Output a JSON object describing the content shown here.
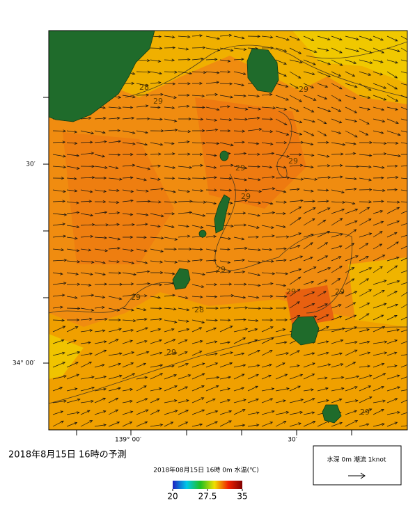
{
  "title": "2018年8月15日  16時の予測",
  "map": {
    "lat_labels": [
      "30′",
      "34° 00′"
    ],
    "lon_labels": [
      "139° 00′",
      "30′"
    ],
    "contour_labels": [
      "28",
      "29",
      "29",
      "29",
      "29",
      "29",
      "29",
      "29",
      "29",
      "29",
      "28",
      "29",
      "29"
    ]
  },
  "colorbar": {
    "title": "2018年08月15日 16時 0m 水温(℃)",
    "range": [
      20,
      35
    ],
    "ticks": [
      20,
      27.5,
      35
    ]
  },
  "legend": {
    "text": "水深 0m  潮流  1knot"
  }
}
